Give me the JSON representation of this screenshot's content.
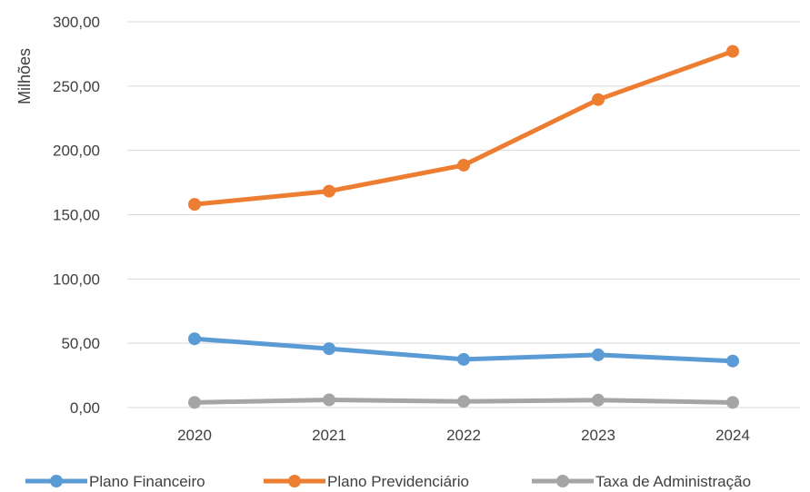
{
  "chart_data": {
    "type": "line",
    "title": "",
    "xlabel": "",
    "ylabel": "Milhões",
    "x": [
      "2020",
      "2021",
      "2022",
      "2023",
      "2024"
    ],
    "ylim": [
      0,
      300
    ],
    "yticks": [
      "0,00",
      "50,00",
      "100,00",
      "150,00",
      "200,00",
      "250,00",
      "300,00"
    ],
    "grid": "horizontal",
    "legend": "bottom",
    "series": [
      {
        "name": "Plano Financeiro",
        "color": "#5b9bd5",
        "values": [
          53.5,
          45.8,
          37.5,
          41.0,
          36.2
        ]
      },
      {
        "name": "Plano Previdenciário",
        "color": "#ed7d31",
        "values": [
          158.0,
          168.3,
          188.5,
          239.5,
          277.0
        ]
      },
      {
        "name": "Taxa de Administração",
        "color": "#a5a5a5",
        "values": [
          4.0,
          6.0,
          4.8,
          5.8,
          4.0
        ]
      }
    ]
  }
}
